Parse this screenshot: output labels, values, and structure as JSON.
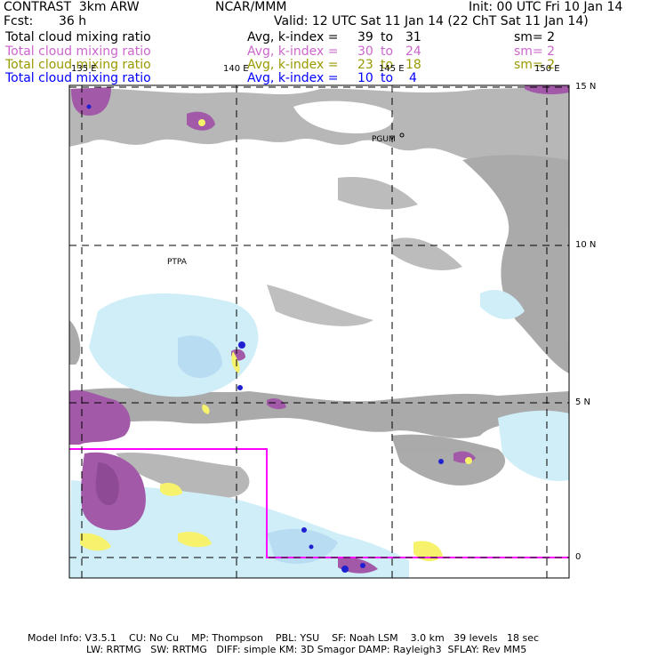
{
  "header": {
    "product": "CONTRAST  3km ARW",
    "center": "NCAR/MMM",
    "init": "Init: 00 UTC Fri 10 Jan 14",
    "fcst_label": "Fcst:",
    "fcst_value": "36 h",
    "valid": "Valid: 12 UTC Sat 11 Jan 14 (22 ChT Sat 11 Jan 14)"
  },
  "fields": [
    {
      "name": "Total cloud mixing ratio",
      "avg": "Avg, k-index =",
      "from": "39",
      "to_word": "to",
      "to": "31",
      "sm": "sm= 2",
      "color": "#000000"
    },
    {
      "name": "Total cloud mixing ratio",
      "avg": "Avg, k-index =",
      "from": "30",
      "to_word": "to",
      "to": "24",
      "sm": "sm= 2",
      "color": "#cc66cc"
    },
    {
      "name": "Total cloud mixing ratio",
      "avg": "Avg, k-index =",
      "from": "23",
      "to_word": "to",
      "to": "18",
      "sm": "sm= 2",
      "color": "#999900"
    },
    {
      "name": "Total cloud mixing ratio",
      "avg": "Avg, k-index =",
      "from": "10",
      "to_word": "to",
      "to": "4",
      "sm": "",
      "color": "#0000ff"
    }
  ],
  "map": {
    "lon_labels": [
      "135 E",
      "140 E",
      "145 E",
      "150 E"
    ],
    "lat_labels": [
      "15 N",
      "10 N",
      "5 N",
      "0"
    ],
    "places": [
      "PGUM",
      "PTPA"
    ],
    "colors": {
      "gray_cloud": "#a6a6a6",
      "light_blue": "#cfeef8",
      "purple": "#a25aa8",
      "yellow": "#f7f26b",
      "blue": "#2020d0",
      "domain_box": "#ff00ff"
    }
  },
  "footer": {
    "line1": "Model Info: V3.5.1    CU: No Cu    MP: Thompson    PBL: YSU    SF: Noah LSM    3.0 km   39 levels   18 sec",
    "line2": "LW: RRTMG   SW: RRTMG   DIFF: simple KM: 3D Smagor DAMP: Rayleigh3  SFLAY: Rev MM5"
  }
}
